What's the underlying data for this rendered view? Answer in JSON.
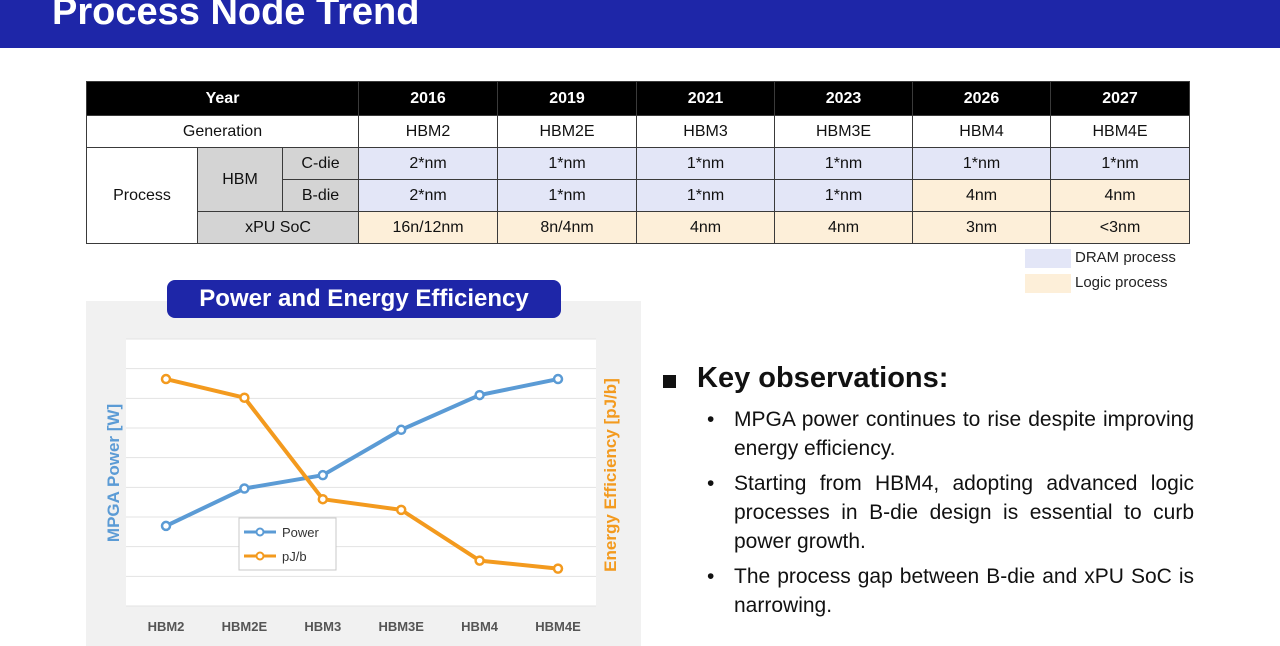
{
  "header": {
    "title": "Process Node Trend"
  },
  "table": {
    "year_label": "Year",
    "years": [
      "2016",
      "2019",
      "2021",
      "2023",
      "2026",
      "2027"
    ],
    "generation_label": "Generation",
    "generations": [
      "HBM2",
      "HBM2E",
      "HBM3",
      "HBM3E",
      "HBM4",
      "HBM4E"
    ],
    "process_label": "Process",
    "hbm_label": "HBM",
    "c_die_label": "C-die",
    "b_die_label": "B-die",
    "xpu_label": "xPU SoC",
    "c_die": [
      "2*nm",
      "1*nm",
      "1*nm",
      "1*nm",
      "1*nm",
      "1*nm"
    ],
    "b_die": [
      "2*nm",
      "1*nm",
      "1*nm",
      "1*nm",
      "4nm",
      "4nm"
    ],
    "xpu_soc": [
      "16n/12nm",
      "8n/4nm",
      "4nm",
      "4nm",
      "3nm",
      "<3nm"
    ],
    "c_die_types": [
      "dram",
      "dram",
      "dram",
      "dram",
      "dram",
      "dram"
    ],
    "b_die_types": [
      "dram",
      "dram",
      "dram",
      "dram",
      "logic",
      "logic"
    ],
    "xpu_types": [
      "logic",
      "logic",
      "logic",
      "logic",
      "logic",
      "logic"
    ]
  },
  "legend": {
    "dram": "DRAM process",
    "logic": "Logic process"
  },
  "colors": {
    "header": "#1e26a8",
    "dram": "#e3e6f7",
    "logic": "#fdefd9",
    "power": "#5b9bd5",
    "pjb": "#f39a1e"
  },
  "chart_data": {
    "type": "line",
    "title": "Power and Energy Efficiency",
    "categories": [
      "HBM2",
      "HBM2E",
      "HBM3",
      "HBM3E",
      "HBM4",
      "HBM4E"
    ],
    "ylabel": "MPGA Power [W]",
    "y2label": "Energy Efficiency [pJ/b]",
    "ylim": [
      0,
      10
    ],
    "y2lim": [
      0,
      10
    ],
    "grid": true,
    "legend_position": "bottom-left",
    "series": [
      {
        "name": "Power",
        "axis": "left",
        "values": [
          3.0,
          4.4,
          4.9,
          6.6,
          7.9,
          8.5
        ]
      },
      {
        "name": "pJ/b",
        "axis": "right",
        "values": [
          8.5,
          7.8,
          4.0,
          3.6,
          1.7,
          1.4
        ]
      }
    ]
  },
  "observations": {
    "title": "Key observations:",
    "items": [
      "MPGA power continues to rise despite improving energy efficiency.",
      "Starting from HBM4, adopting advanced logic processes in B-die design is essential to curb power growth.",
      "The process gap between B-die and xPU SoC is narrowing."
    ]
  }
}
